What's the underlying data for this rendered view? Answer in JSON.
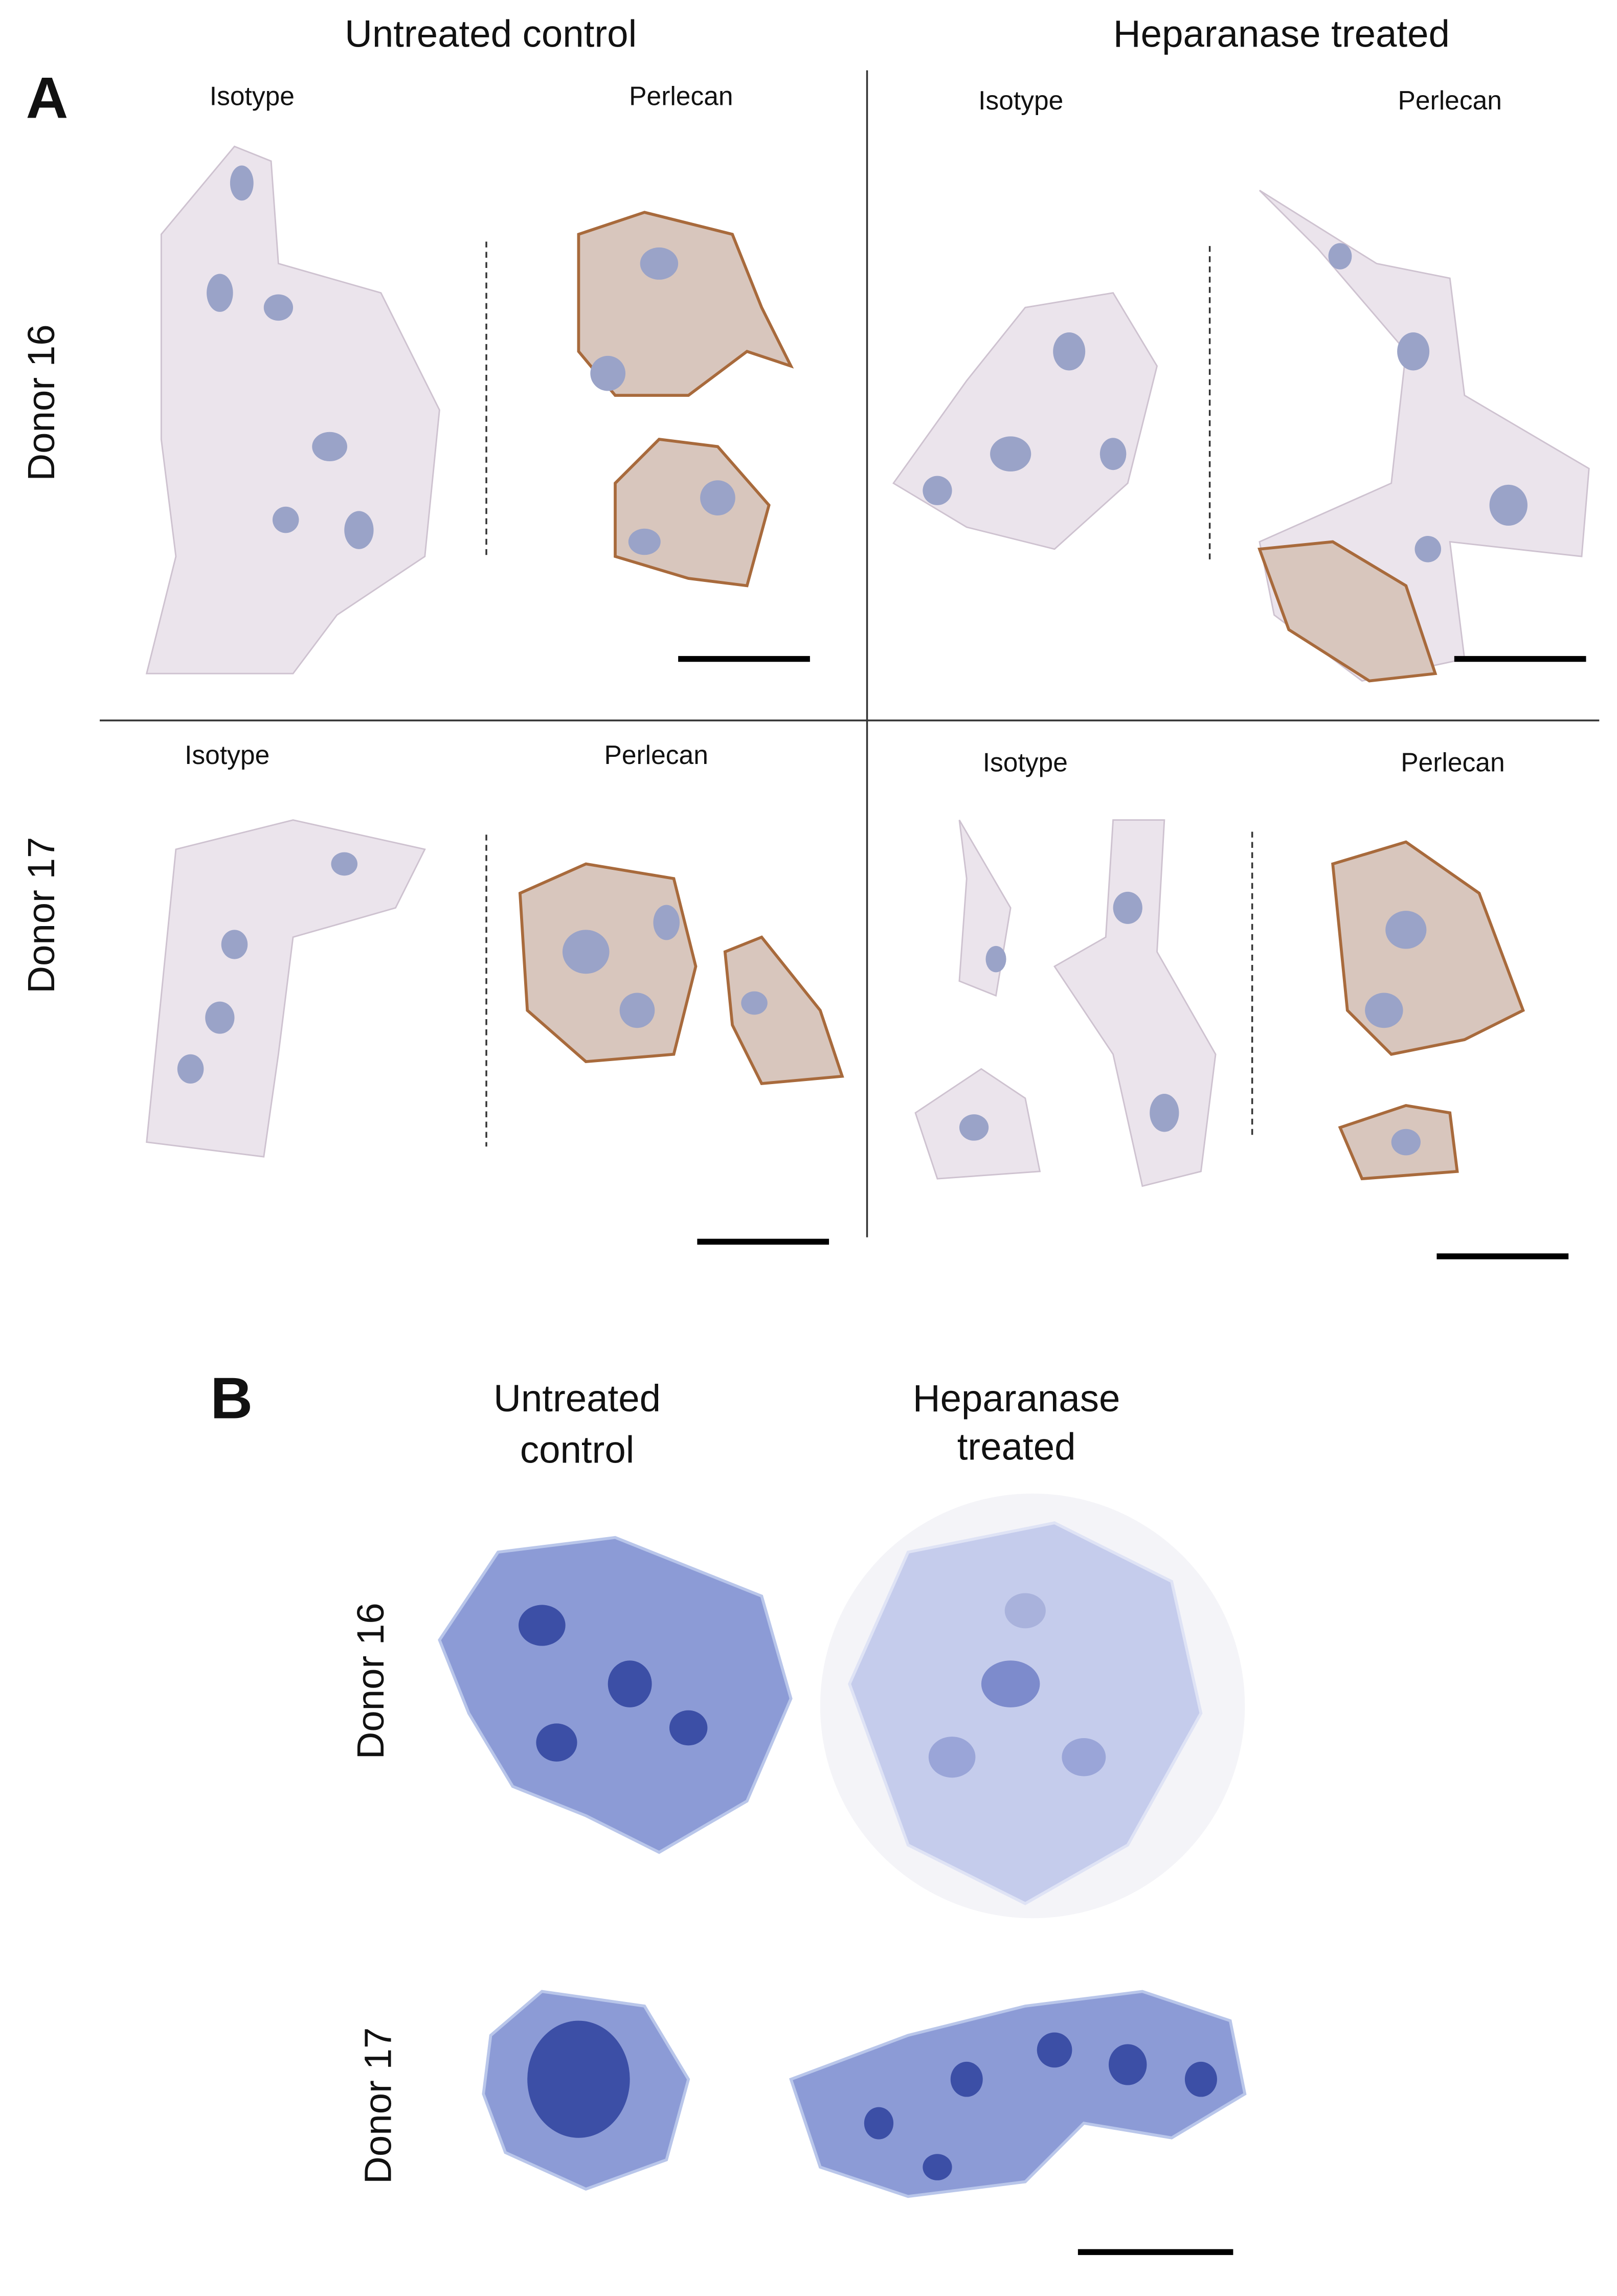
{
  "panel_a": {
    "label": "A",
    "columns": [
      "Untreated control",
      "Heparanase treated"
    ],
    "rows": [
      "Donor 16",
      "Donor 17"
    ],
    "subpanels": [
      {
        "isotype": "Isotype",
        "perlecan": "Perlecan"
      },
      {
        "isotype": "Isotype",
        "perlecan": "Perlecan"
      },
      {
        "isotype": "Isotype",
        "perlecan": "Perlecan"
      },
      {
        "isotype": "Isotype",
        "perlecan": "Perlecan"
      }
    ]
  },
  "panel_b": {
    "label": "B",
    "columns": [
      [
        "Untreated",
        "control"
      ],
      [
        "Heparanase",
        "treated"
      ]
    ],
    "rows": [
      "Donor 16",
      "Donor 17"
    ]
  }
}
